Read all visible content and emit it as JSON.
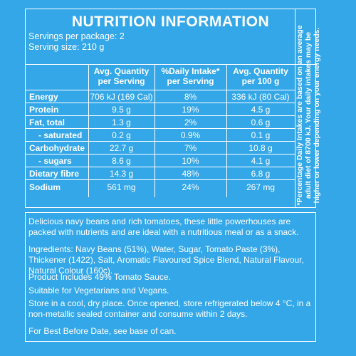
{
  "nutrition": {
    "title": "NUTRITION INFORMATION",
    "servings_per_package": "Servings per package: 2",
    "serving_size": "Serving size: 210 g",
    "columns": [
      {
        "line1": "Avg. Quantity",
        "line2": "per Serving"
      },
      {
        "line1": "%Daily Intake*",
        "line2": "per Serving"
      },
      {
        "line1": "Avg. Quantity",
        "line2": "per 100 g"
      }
    ],
    "rows": [
      {
        "label": "Energy",
        "bold": true,
        "per_serving": "706 kJ (169 Cal)",
        "daily_intake": "8%",
        "per_100g": "336 kJ (80 Cal)"
      },
      {
        "label": "Protein",
        "bold": true,
        "per_serving": "9.5 g",
        "daily_intake": "19%",
        "per_100g": "4.5 g"
      },
      {
        "label": "Fat, total",
        "bold": true,
        "per_serving": "1.3 g",
        "daily_intake": "2%",
        "per_100g": "0.6 g"
      },
      {
        "label": "- saturated",
        "bold": true,
        "per_serving": "0.2 g",
        "daily_intake": "0.9%",
        "per_100g": "0.1 g"
      },
      {
        "label": "Carbohydrate",
        "bold": true,
        "per_serving": "22.7 g",
        "daily_intake": "7%",
        "per_100g": "10.8 g"
      },
      {
        "label": "- sugars",
        "bold": true,
        "per_serving": "8.6 g",
        "daily_intake": "10%",
        "per_100g": "4.1 g"
      },
      {
        "label": "Dietary fibre",
        "bold": true,
        "per_serving": "14.3 g",
        "daily_intake": "48%",
        "per_100g": "6.8 g"
      },
      {
        "label": "Sodium",
        "bold": true,
        "per_serving": "561 mg",
        "daily_intake": "24%",
        "per_100g": "267 mg"
      }
    ],
    "side_note": "*Percentage Daily Intakes are based on an average adult diet of 8700 kJ. Your daily intakes may be higher or lower depending on your energy needs."
  },
  "description": {
    "intro": "Delicious navy beans and rich tomatoes, these little powerhouses are packed with nutrients and are ideal with a nutritious meal or as a snack.",
    "ingredients": "Ingredients: Navy Beans (51%), Water, Sugar, Tomato Paste (3%), Thickener (1422), Salt, Aromatic Flavoured Spice Blend, Natural Flavour, Natural Colour (160c).",
    "product_includes": "Product Includes 49% Tomato Sauce.",
    "suitable_for": "Suitable for Vegetarians and Vegans.",
    "storage": "Store in a cool, dry place. Once opened, store refrigerated below 4 °C, in a non-metallic sealed container and consume within 2 days.",
    "best_before": "For Best Before Date, see base of can."
  },
  "colors": {
    "background": "#34a7e8",
    "text": "#ffffff"
  }
}
